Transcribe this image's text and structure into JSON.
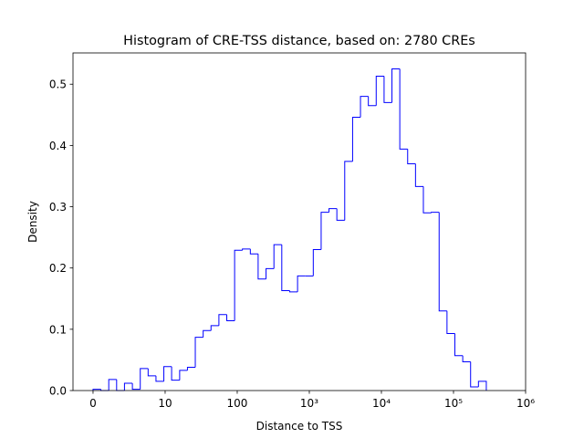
{
  "chart_data": {
    "type": "histogram",
    "title": "Histogram of CRE-TSS distance, based on: 2780 CREs",
    "x_label": "Distance to TSS",
    "y_label": "Density",
    "xscale": "symlog",
    "linthresh": 10,
    "bins": [
      0,
      1.09,
      2.18,
      3.27,
      4.36,
      5.46,
      6.55,
      7.64,
      8.73,
      9.82,
      12.3,
      15.9,
      20.4,
      26.2,
      33.7,
      43.3,
      55.7,
      71.6,
      92,
      118,
      152,
      195,
      251,
      323,
      415,
      534,
      687,
      883,
      1135,
      1459,
      1875,
      2410,
      3098,
      3986,
      5124,
      6587,
      8467,
      10890,
      14000,
      17990,
      23120,
      29720,
      38200,
      49110,
      63200,
      81230,
      104400,
      134300,
      172600,
      221800,
      285100
    ],
    "values": [
      0.002,
      0,
      0.018,
      0,
      0.012,
      0.002,
      0.036,
      0.024,
      0.015,
      0.039,
      0.017,
      0.033,
      0.038,
      0.087,
      0.098,
      0.106,
      0.124,
      0.114,
      0.229,
      0.231,
      0.223,
      0.182,
      0.199,
      0.238,
      0.163,
      0.161,
      0.187,
      0.187,
      0.23,
      0.291,
      0.297,
      0.278,
      0.374,
      0.446,
      0.48,
      0.465,
      0.513,
      0.47,
      0.525,
      0.394,
      0.37,
      0.333,
      0.29,
      0.291,
      0.13,
      0.093,
      0.057,
      0.047,
      0.006,
      0.015
    ],
    "color": "#0000ff",
    "xlim": [
      -2.78,
      1000000
    ],
    "xticks": [
      0,
      10,
      100,
      {
        "value": 1000,
        "label": "10³"
      },
      {
        "value": 10000,
        "label": "10⁴"
      },
      {
        "value": 100000,
        "label": "10⁵"
      },
      {
        "value": 1000000,
        "label": "10⁶"
      }
    ],
    "ylim": [
      0,
      0.551
    ],
    "yticks": [
      {
        "value": 0,
        "label": "0.0"
      },
      0.1,
      0.2,
      0.3,
      0.4,
      0.5
    ],
    "grid": false
  }
}
